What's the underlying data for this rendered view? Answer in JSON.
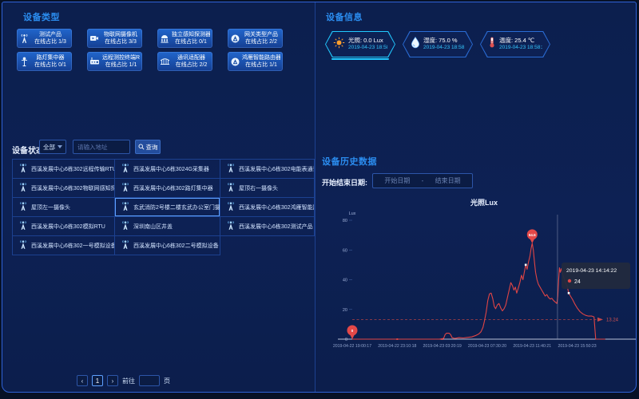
{
  "theme": {
    "bg_outer": "#071126",
    "bg_panel": "#0d2154",
    "border_blue": "#2f62d8",
    "header_blue": "#2b8df0",
    "accent_cyan": "#21c9ff",
    "series_red": "#e04545"
  },
  "device_types": {
    "title": "设备类型",
    "cards": [
      {
        "icon": "antenna-icon",
        "name": "测试产品",
        "online": "在线占比 1/3"
      },
      {
        "icon": "camera-icon",
        "name": "物联网摄像机",
        "online": "在线占比 3/3"
      },
      {
        "icon": "detector-icon",
        "name": "独立感知探测器",
        "online": "在线占比 0/1"
      },
      {
        "icon": "gateway-icon",
        "name": "网关类型产品",
        "online": "在线占比 2/2"
      },
      {
        "icon": "streetlamp-icon",
        "name": "路灯集中器",
        "online": "在线占比 0/1"
      },
      {
        "icon": "rtu-icon",
        "name": "远程测控终端RTU",
        "online": "在线占比 1/1"
      },
      {
        "icon": "adapter-icon",
        "name": "通讯适配器",
        "online": "在线占比 2/2"
      },
      {
        "icon": "router-icon",
        "name": "鸿雁智能路由器",
        "online": "在线占比 1/1"
      }
    ]
  },
  "device_info": {
    "title": "设备信息",
    "badges": [
      {
        "icon": "sun-icon",
        "label": "光照:",
        "value": "0.0 Lux",
        "time": "2019-04-23 18:58:23",
        "selected": true
      },
      {
        "icon": "humidity-icon",
        "label": "湿度:",
        "value": "75.0 %",
        "time": "2019-04-23 18:58:23",
        "selected": false
      },
      {
        "icon": "temperature-icon",
        "label": "温度:",
        "value": "25.4 ℃",
        "time": "2019-04-23 18:58:23",
        "selected": false
      }
    ]
  },
  "device_status": {
    "label": "设备状态",
    "filter_value": "全部",
    "search_placeholder": "请输入地址",
    "search_button": "查询",
    "devices": [
      {
        "name": "西溪发展中心6栋302远程传输RTU终端",
        "selected": false
      },
      {
        "name": "西溪发展中心6栋3024G采集器",
        "selected": false
      },
      {
        "name": "西溪发展中心6栋302电能表通讯适配器",
        "selected": false
      },
      {
        "name": "西溪发展中心6栋302物联网感知探测器1号",
        "selected": false
      },
      {
        "name": "西溪发展中心6栋302路灯集中器",
        "selected": false
      },
      {
        "name": "屋顶右一摄像头",
        "selected": false
      },
      {
        "name": "屋顶左一摄像头",
        "selected": false
      },
      {
        "name": "玄武消防2号楼二楼玄武办公室门摄像头",
        "selected": true
      },
      {
        "name": "西溪发展中心6栋302鸿雁智能路由器",
        "selected": false
      },
      {
        "name": "西溪发展中心6栋302模拟RTU",
        "selected": false
      },
      {
        "name": "深圳南山区井盖",
        "selected": false
      },
      {
        "name": "西溪发展中心6栋302测试产品",
        "selected": false
      },
      {
        "name": "西溪发展中心6栋302一号模拟设备",
        "selected": false
      },
      {
        "name": "西溪发展中心6栋302二号模拟设备",
        "selected": false
      }
    ]
  },
  "pagination": {
    "prev": "‹",
    "page": "1",
    "next": "›",
    "goto_label": "前往",
    "page_suffix": "页"
  },
  "history": {
    "title": "设备历史数据",
    "date_label": "开始结束日期:",
    "start_placeholder": "开始日期",
    "separator": "-",
    "end_placeholder": "结束日期"
  },
  "chart_data": {
    "type": "line",
    "title": "光照Lux",
    "ylabel": "Lux",
    "ylim": [
      0,
      80
    ],
    "yticks": [
      0,
      20,
      40,
      60,
      80
    ],
    "xticks": [
      "2019-04-22 19:00:17",
      "2019-04-22 23:10:18",
      "2019-04-23 03:20:19",
      "2019-04-23 07:30:20",
      "2019-04-23 11:40:21",
      "2019-04-23 15:50:23"
    ],
    "xtick_pos": [
      0,
      16,
      32,
      48,
      64,
      80
    ],
    "series_name": "光照",
    "series_color": "#e04545",
    "average": 13.24,
    "average_label": "13.24",
    "min_marker": {
      "x": 0,
      "value": 0,
      "label": "0"
    },
    "max_marker": {
      "x": 64,
      "value": 64.5,
      "label": "64.5"
    },
    "tooltip": {
      "time": "2019-04-23 14:14:22",
      "value": "24",
      "x": 73
    },
    "white_markers": [
      {
        "x": 61.7,
        "y": 50
      },
      {
        "x": 77,
        "y": 31
      }
    ],
    "tick_markers": [
      {
        "x": 16,
        "y": 0
      },
      {
        "x": 32,
        "y": 0
      }
    ],
    "points": [
      [
        0,
        0
      ],
      [
        4,
        0
      ],
      [
        8,
        0
      ],
      [
        12,
        0
      ],
      [
        16,
        0
      ],
      [
        20,
        0
      ],
      [
        24,
        0
      ],
      [
        28,
        0
      ],
      [
        31,
        0
      ],
      [
        32.5,
        0.5
      ],
      [
        33,
        3
      ],
      [
        33.5,
        4
      ],
      [
        34.5,
        4
      ],
      [
        35,
        3
      ],
      [
        35.5,
        1
      ],
      [
        36.5,
        0.5
      ],
      [
        38,
        1
      ],
      [
        39.5,
        0.8
      ],
      [
        41,
        1.2
      ],
      [
        42.5,
        1.5
      ],
      [
        44,
        2.5
      ],
      [
        45,
        3.5
      ],
      [
        45.8,
        5
      ],
      [
        46.5,
        8
      ],
      [
        47,
        12
      ],
      [
        47.6,
        18
      ],
      [
        48.2,
        26
      ],
      [
        48.8,
        30.5
      ],
      [
        49.4,
        31
      ],
      [
        50,
        27
      ],
      [
        50.5,
        22
      ],
      [
        51,
        20.5
      ],
      [
        51.6,
        23
      ],
      [
        52.2,
        24
      ],
      [
        52.8,
        21
      ],
      [
        53.4,
        19
      ],
      [
        54,
        20.5
      ],
      [
        54.6,
        23
      ],
      [
        55.2,
        28
      ],
      [
        55.8,
        33
      ],
      [
        56.4,
        38
      ],
      [
        57,
        36
      ],
      [
        57.5,
        33
      ],
      [
        58,
        35
      ],
      [
        58.5,
        31
      ],
      [
        59,
        34
      ],
      [
        59.6,
        38
      ],
      [
        60.2,
        43
      ],
      [
        60.7,
        40
      ],
      [
        61.2,
        45
      ],
      [
        61.7,
        50
      ],
      [
        62.2,
        47
      ],
      [
        62.7,
        52
      ],
      [
        63.2,
        56
      ],
      [
        63.6,
        61
      ],
      [
        64,
        64.5
      ],
      [
        64.4,
        60
      ],
      [
        64.8,
        52
      ],
      [
        65.2,
        45
      ],
      [
        65.7,
        40
      ],
      [
        66.2,
        37
      ],
      [
        66.8,
        35
      ],
      [
        67.4,
        33
      ],
      [
        68,
        31
      ],
      [
        68.6,
        29
      ],
      [
        69.2,
        30
      ],
      [
        69.8,
        28
      ],
      [
        70.4,
        27
      ],
      [
        71,
        27.5
      ],
      [
        71.6,
        26
      ],
      [
        72.2,
        25
      ],
      [
        72.8,
        24
      ],
      [
        73.1,
        29
      ],
      [
        73.4,
        40
      ],
      [
        73.7,
        48
      ],
      [
        74,
        45
      ],
      [
        74.4,
        47.5
      ],
      [
        74.8,
        44
      ],
      [
        75.3,
        41
      ],
      [
        75.8,
        38
      ],
      [
        76.4,
        36
      ],
      [
        77,
        31
      ],
      [
        77.6,
        29
      ],
      [
        78.4,
        26.5
      ],
      [
        79.2,
        23.5
      ],
      [
        80,
        21
      ],
      [
        81,
        18.5
      ],
      [
        82,
        17
      ],
      [
        83,
        16
      ],
      [
        84,
        15.5
      ],
      [
        85.2,
        15.5
      ],
      [
        86,
        15
      ],
      [
        86.3,
        7
      ],
      [
        86.6,
        0
      ],
      [
        88,
        0
      ],
      [
        90,
        0
      ]
    ]
  }
}
